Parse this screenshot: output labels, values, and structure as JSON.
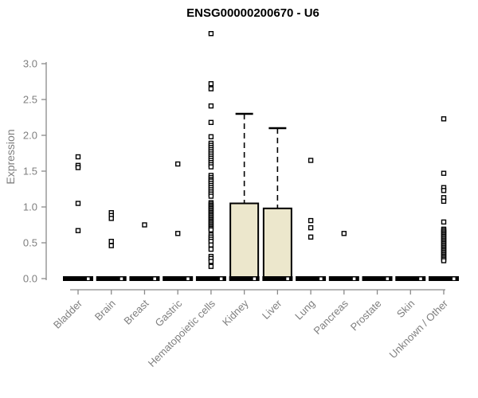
{
  "chart_data": {
    "type": "boxplot",
    "title": "ENSG00000200670 - U6",
    "ylabel": "Expression",
    "xlabel": "",
    "ylim": [
      0,
      3.42
    ],
    "yticks": [
      0.0,
      0.5,
      1.0,
      1.5,
      2.0,
      2.5,
      3.0
    ],
    "ytick_labels": [
      "0.0",
      "0.5",
      "1.0",
      "1.5",
      "2.0",
      "2.5",
      "3.0"
    ],
    "grid": false,
    "legend": null,
    "colors": {
      "box_fill": "#ECE7CC",
      "box_stroke": "#000000",
      "axis": "#8a8a8a",
      "tick_text": "#7f7f7f",
      "title": "#000000",
      "point_fill": "#ffffff",
      "point_stroke": "#000000"
    },
    "categories": [
      "Bladder",
      "Brain",
      "Breast",
      "Gastric",
      "Hematopoietic cells",
      "Kidney",
      "Liver",
      "Lung",
      "Pancreas",
      "Prostate",
      "Skin",
      "Unknown / Other"
    ],
    "boxes": [
      {
        "category": "Bladder",
        "q1": 0,
        "median": 0,
        "q3": 0,
        "whisker_low": 0,
        "whisker_high": 0,
        "outliers": [
          1.7,
          1.58,
          1.55,
          1.05,
          0.67
        ]
      },
      {
        "category": "Brain",
        "q1": 0,
        "median": 0,
        "q3": 0,
        "whisker_low": 0,
        "whisker_high": 0,
        "outliers": [
          0.92,
          0.88,
          0.84,
          0.52,
          0.46
        ]
      },
      {
        "category": "Breast",
        "q1": 0,
        "median": 0,
        "q3": 0,
        "whisker_low": 0,
        "whisker_high": 0,
        "outliers": [
          0.75
        ]
      },
      {
        "category": "Gastric",
        "q1": 0,
        "median": 0,
        "q3": 0,
        "whisker_low": 0,
        "whisker_high": 0,
        "outliers": [
          1.6,
          0.63
        ]
      },
      {
        "category": "Hematopoietic cells",
        "q1": 0,
        "median": 0,
        "q3": 0,
        "whisker_low": 0,
        "whisker_high": 0,
        "outliers": [
          3.42,
          2.72,
          2.65,
          2.41,
          2.18,
          1.98,
          1.89,
          1.86,
          1.83,
          1.8,
          1.77,
          1.74,
          1.71,
          1.68,
          1.65,
          1.62,
          1.59,
          1.56,
          1.44,
          1.41,
          1.38,
          1.36,
          1.33,
          1.3,
          1.27,
          1.24,
          1.21,
          1.18,
          1.15,
          1.06,
          1.04,
          1.02,
          1.0,
          0.98,
          0.96,
          0.94,
          0.92,
          0.9,
          0.88,
          0.86,
          0.84,
          0.82,
          0.8,
          0.78,
          0.76,
          0.74,
          0.72,
          0.7,
          0.68,
          0.61,
          0.58,
          0.55,
          0.52,
          0.47,
          0.41,
          0.31,
          0.28,
          0.24,
          0.17
        ]
      },
      {
        "category": "Kidney",
        "q1": 0,
        "median": 0,
        "q3": 1.05,
        "whisker_low": 0,
        "whisker_high": 2.3,
        "outliers": []
      },
      {
        "category": "Liver",
        "q1": 0,
        "median": 0,
        "q3": 0.98,
        "whisker_low": 0,
        "whisker_high": 2.1,
        "outliers": []
      },
      {
        "category": "Lung",
        "q1": 0,
        "median": 0,
        "q3": 0,
        "whisker_low": 0,
        "whisker_high": 0,
        "outliers": [
          1.65,
          0.81,
          0.71,
          0.58
        ]
      },
      {
        "category": "Pancreas",
        "q1": 0,
        "median": 0,
        "q3": 0,
        "whisker_low": 0,
        "whisker_high": 0,
        "outliers": [
          0.63
        ]
      },
      {
        "category": "Prostate",
        "q1": 0,
        "median": 0,
        "q3": 0,
        "whisker_low": 0,
        "whisker_high": 0,
        "outliers": []
      },
      {
        "category": "Skin",
        "q1": 0,
        "median": 0,
        "q3": 0,
        "whisker_low": 0,
        "whisker_high": 0,
        "outliers": []
      },
      {
        "category": "Unknown / Other",
        "q1": 0,
        "median": 0,
        "q3": 0,
        "whisker_low": 0,
        "whisker_high": 0,
        "outliers": [
          2.23,
          1.47,
          1.27,
          1.23,
          1.13,
          1.08,
          0.79,
          0.69,
          0.67,
          0.65,
          0.63,
          0.61,
          0.59,
          0.57,
          0.55,
          0.53,
          0.51,
          0.49,
          0.47,
          0.45,
          0.43,
          0.41,
          0.39,
          0.37,
          0.35,
          0.33,
          0.31,
          0.29,
          0.27,
          0.25
        ]
      }
    ]
  }
}
